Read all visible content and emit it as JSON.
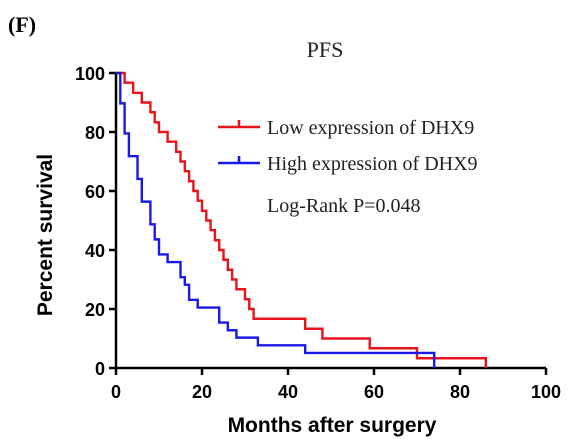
{
  "panel_label": "(F)",
  "chart_data": {
    "type": "line",
    "title": "PFS",
    "xlabel": "Months after surgery",
    "ylabel": "Percent survival",
    "xlim": [
      0,
      100
    ],
    "ylim": [
      0,
      100
    ],
    "xticks": [
      0,
      20,
      40,
      60,
      80,
      100
    ],
    "yticks": [
      0,
      20,
      40,
      60,
      80,
      100
    ],
    "grid": false,
    "legend_position": "top-right",
    "annotation": "Log-Rank P=0.048",
    "series": [
      {
        "name": "Low expression of DHX9",
        "color": "#e8141c",
        "points": [
          [
            0,
            100
          ],
          [
            2,
            100
          ],
          [
            2,
            96.7
          ],
          [
            4,
            96.7
          ],
          [
            4,
            93.3
          ],
          [
            6,
            93.3
          ],
          [
            6,
            90
          ],
          [
            8,
            90
          ],
          [
            8,
            86.7
          ],
          [
            9,
            86.7
          ],
          [
            9,
            83.3
          ],
          [
            10,
            83.3
          ],
          [
            10,
            80
          ],
          [
            12,
            80
          ],
          [
            12,
            76.7
          ],
          [
            14,
            76.7
          ],
          [
            14,
            73.3
          ],
          [
            15,
            73.3
          ],
          [
            15,
            70
          ],
          [
            16,
            70
          ],
          [
            16,
            66.7
          ],
          [
            17,
            66.7
          ],
          [
            17,
            63.3
          ],
          [
            18,
            63.3
          ],
          [
            18,
            60
          ],
          [
            19,
            60
          ],
          [
            19,
            56.7
          ],
          [
            20,
            56.7
          ],
          [
            20,
            53.3
          ],
          [
            21,
            53.3
          ],
          [
            21,
            50
          ],
          [
            22,
            50
          ],
          [
            22,
            46.7
          ],
          [
            23,
            46.7
          ],
          [
            23,
            43.3
          ],
          [
            24,
            43.3
          ],
          [
            24,
            40
          ],
          [
            25,
            40
          ],
          [
            25,
            36.7
          ],
          [
            26,
            36.7
          ],
          [
            26,
            33.3
          ],
          [
            27,
            33.3
          ],
          [
            27,
            30
          ],
          [
            28,
            30
          ],
          [
            28,
            26.7
          ],
          [
            30,
            26.7
          ],
          [
            30,
            23.3
          ],
          [
            31,
            23.3
          ],
          [
            31,
            20
          ],
          [
            32,
            20
          ],
          [
            32,
            16.7
          ],
          [
            44,
            16.7
          ],
          [
            44,
            13.3
          ],
          [
            48,
            13.3
          ],
          [
            48,
            10
          ],
          [
            59,
            10
          ],
          [
            59,
            6.7
          ],
          [
            70,
            6.7
          ],
          [
            70,
            3.3
          ],
          [
            86,
            3.3
          ],
          [
            86,
            0
          ]
        ]
      },
      {
        "name": "High expression of DHX9",
        "color": "#1a1ae6",
        "points": [
          [
            0,
            100
          ],
          [
            1,
            100
          ],
          [
            1,
            89.7
          ],
          [
            2,
            89.7
          ],
          [
            2,
            79.5
          ],
          [
            3,
            79.5
          ],
          [
            3,
            71.8
          ],
          [
            5,
            71.8
          ],
          [
            5,
            64.1
          ],
          [
            6,
            64.1
          ],
          [
            6,
            56.4
          ],
          [
            8,
            56.4
          ],
          [
            8,
            48.7
          ],
          [
            9,
            48.7
          ],
          [
            9,
            43.6
          ],
          [
            10,
            43.6
          ],
          [
            10,
            38.5
          ],
          [
            12,
            38.5
          ],
          [
            12,
            35.9
          ],
          [
            15,
            35.9
          ],
          [
            15,
            30.8
          ],
          [
            16,
            30.8
          ],
          [
            16,
            28.2
          ],
          [
            17,
            28.2
          ],
          [
            17,
            23.1
          ],
          [
            19,
            23.1
          ],
          [
            19,
            20.5
          ],
          [
            24,
            20.5
          ],
          [
            24,
            15.4
          ],
          [
            26,
            15.4
          ],
          [
            26,
            12.8
          ],
          [
            28,
            12.8
          ],
          [
            28,
            10.3
          ],
          [
            33,
            10.3
          ],
          [
            33,
            7.7
          ],
          [
            44,
            7.7
          ],
          [
            44,
            5.1
          ],
          [
            74,
            5.1
          ],
          [
            74,
            0
          ]
        ]
      }
    ]
  }
}
